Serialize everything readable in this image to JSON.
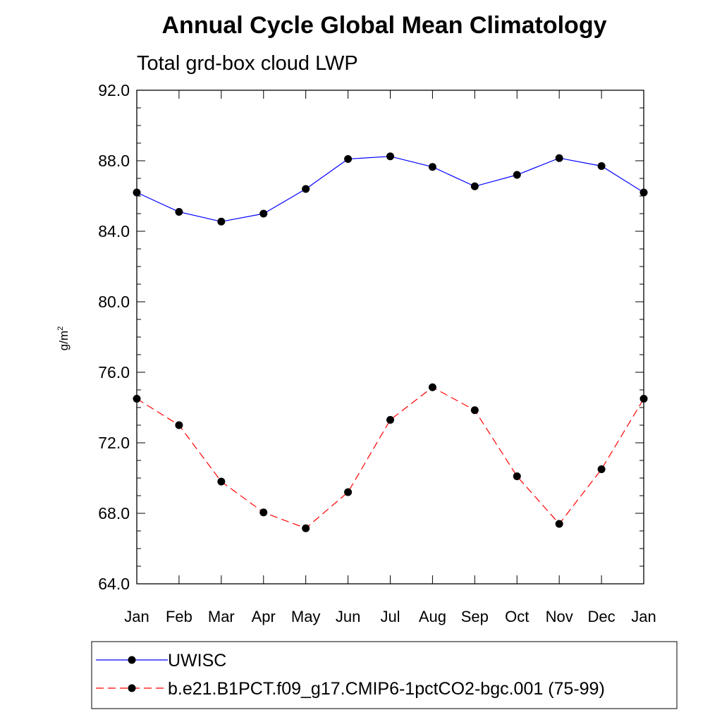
{
  "chart_data": {
    "type": "line",
    "title": "Annual Cycle Global Mean Climatology",
    "subtitle": "Total grd-box cloud LWP",
    "ylabel": "g/m",
    "ylabel_superscript": "2",
    "xlabel": "",
    "ylim": [
      64.0,
      92.0
    ],
    "yticks": [
      "64.0",
      "68.0",
      "72.0",
      "76.0",
      "80.0",
      "84.0",
      "88.0",
      "92.0"
    ],
    "categories": [
      "Jan",
      "Feb",
      "Mar",
      "Apr",
      "May",
      "Jun",
      "Jul",
      "Aug",
      "Sep",
      "Oct",
      "Nov",
      "Dec",
      "Jan"
    ],
    "legend_position": "bottom",
    "series": [
      {
        "name": "UWISC",
        "color": "#0000ff",
        "style": "solid",
        "marker": "circle",
        "values": [
          86.2,
          85.1,
          84.55,
          85.0,
          86.4,
          88.1,
          88.25,
          87.65,
          86.55,
          87.2,
          88.15,
          87.7,
          86.2
        ]
      },
      {
        "name": "b.e21.B1PCT.f09_g17.CMIP6-1pctCO2-bgc.001 (75-99)",
        "color": "#ff0000",
        "style": "dashed",
        "marker": "circle",
        "values": [
          74.5,
          73.0,
          69.8,
          68.05,
          67.15,
          69.2,
          73.3,
          75.15,
          73.85,
          70.1,
          67.4,
          70.5,
          74.5
        ]
      }
    ]
  }
}
